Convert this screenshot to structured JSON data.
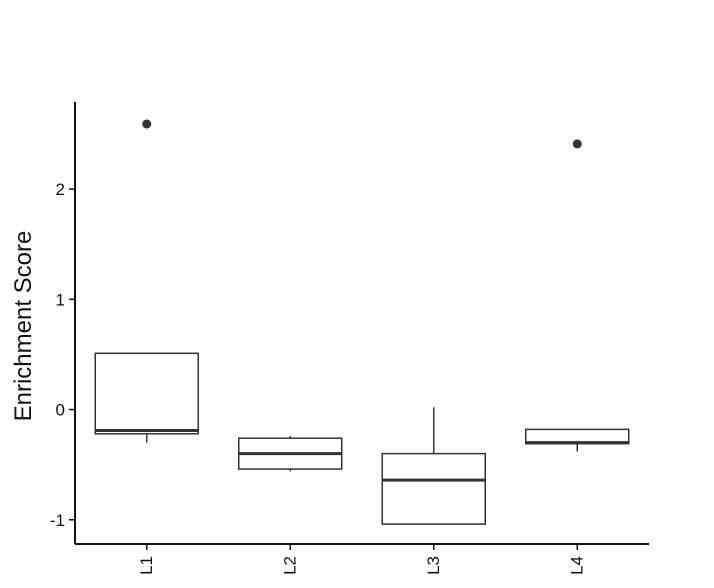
{
  "chart_data": {
    "type": "box",
    "title": "",
    "xlabel": "",
    "ylabel": "Enrichment Score",
    "categories": [
      "L1",
      "L2",
      "L3",
      "L4"
    ],
    "ylim": [
      -1.22,
      2.79
    ],
    "yticks": [
      -1,
      0,
      1,
      2
    ],
    "ytick_labels": [
      "-1",
      "0",
      "1",
      "2"
    ],
    "grid": false,
    "legend": "none",
    "boxes": [
      {
        "category": "L1",
        "whisker_low": -0.3,
        "q1": -0.22,
        "median": -0.19,
        "q3": 0.51,
        "whisker_high": 0.51,
        "outliers": [
          2.59
        ]
      },
      {
        "category": "L2",
        "whisker_low": -0.56,
        "q1": -0.54,
        "median": -0.4,
        "q3": -0.26,
        "whisker_high": -0.24,
        "outliers": []
      },
      {
        "category": "L3",
        "whisker_low": -1.04,
        "q1": -1.04,
        "median": -0.64,
        "q3": -0.4,
        "whisker_high": 0.02,
        "outliers": []
      },
      {
        "category": "L4",
        "whisker_low": -0.38,
        "q1": -0.31,
        "median": -0.3,
        "q3": -0.18,
        "whisker_high": -0.18,
        "outliers": [
          2.41
        ]
      }
    ],
    "colors": {
      "box_fill": "#ffffff",
      "box_stroke": "#333333",
      "median": "#333333",
      "outlier": "#333333",
      "axis": "#111111"
    }
  }
}
